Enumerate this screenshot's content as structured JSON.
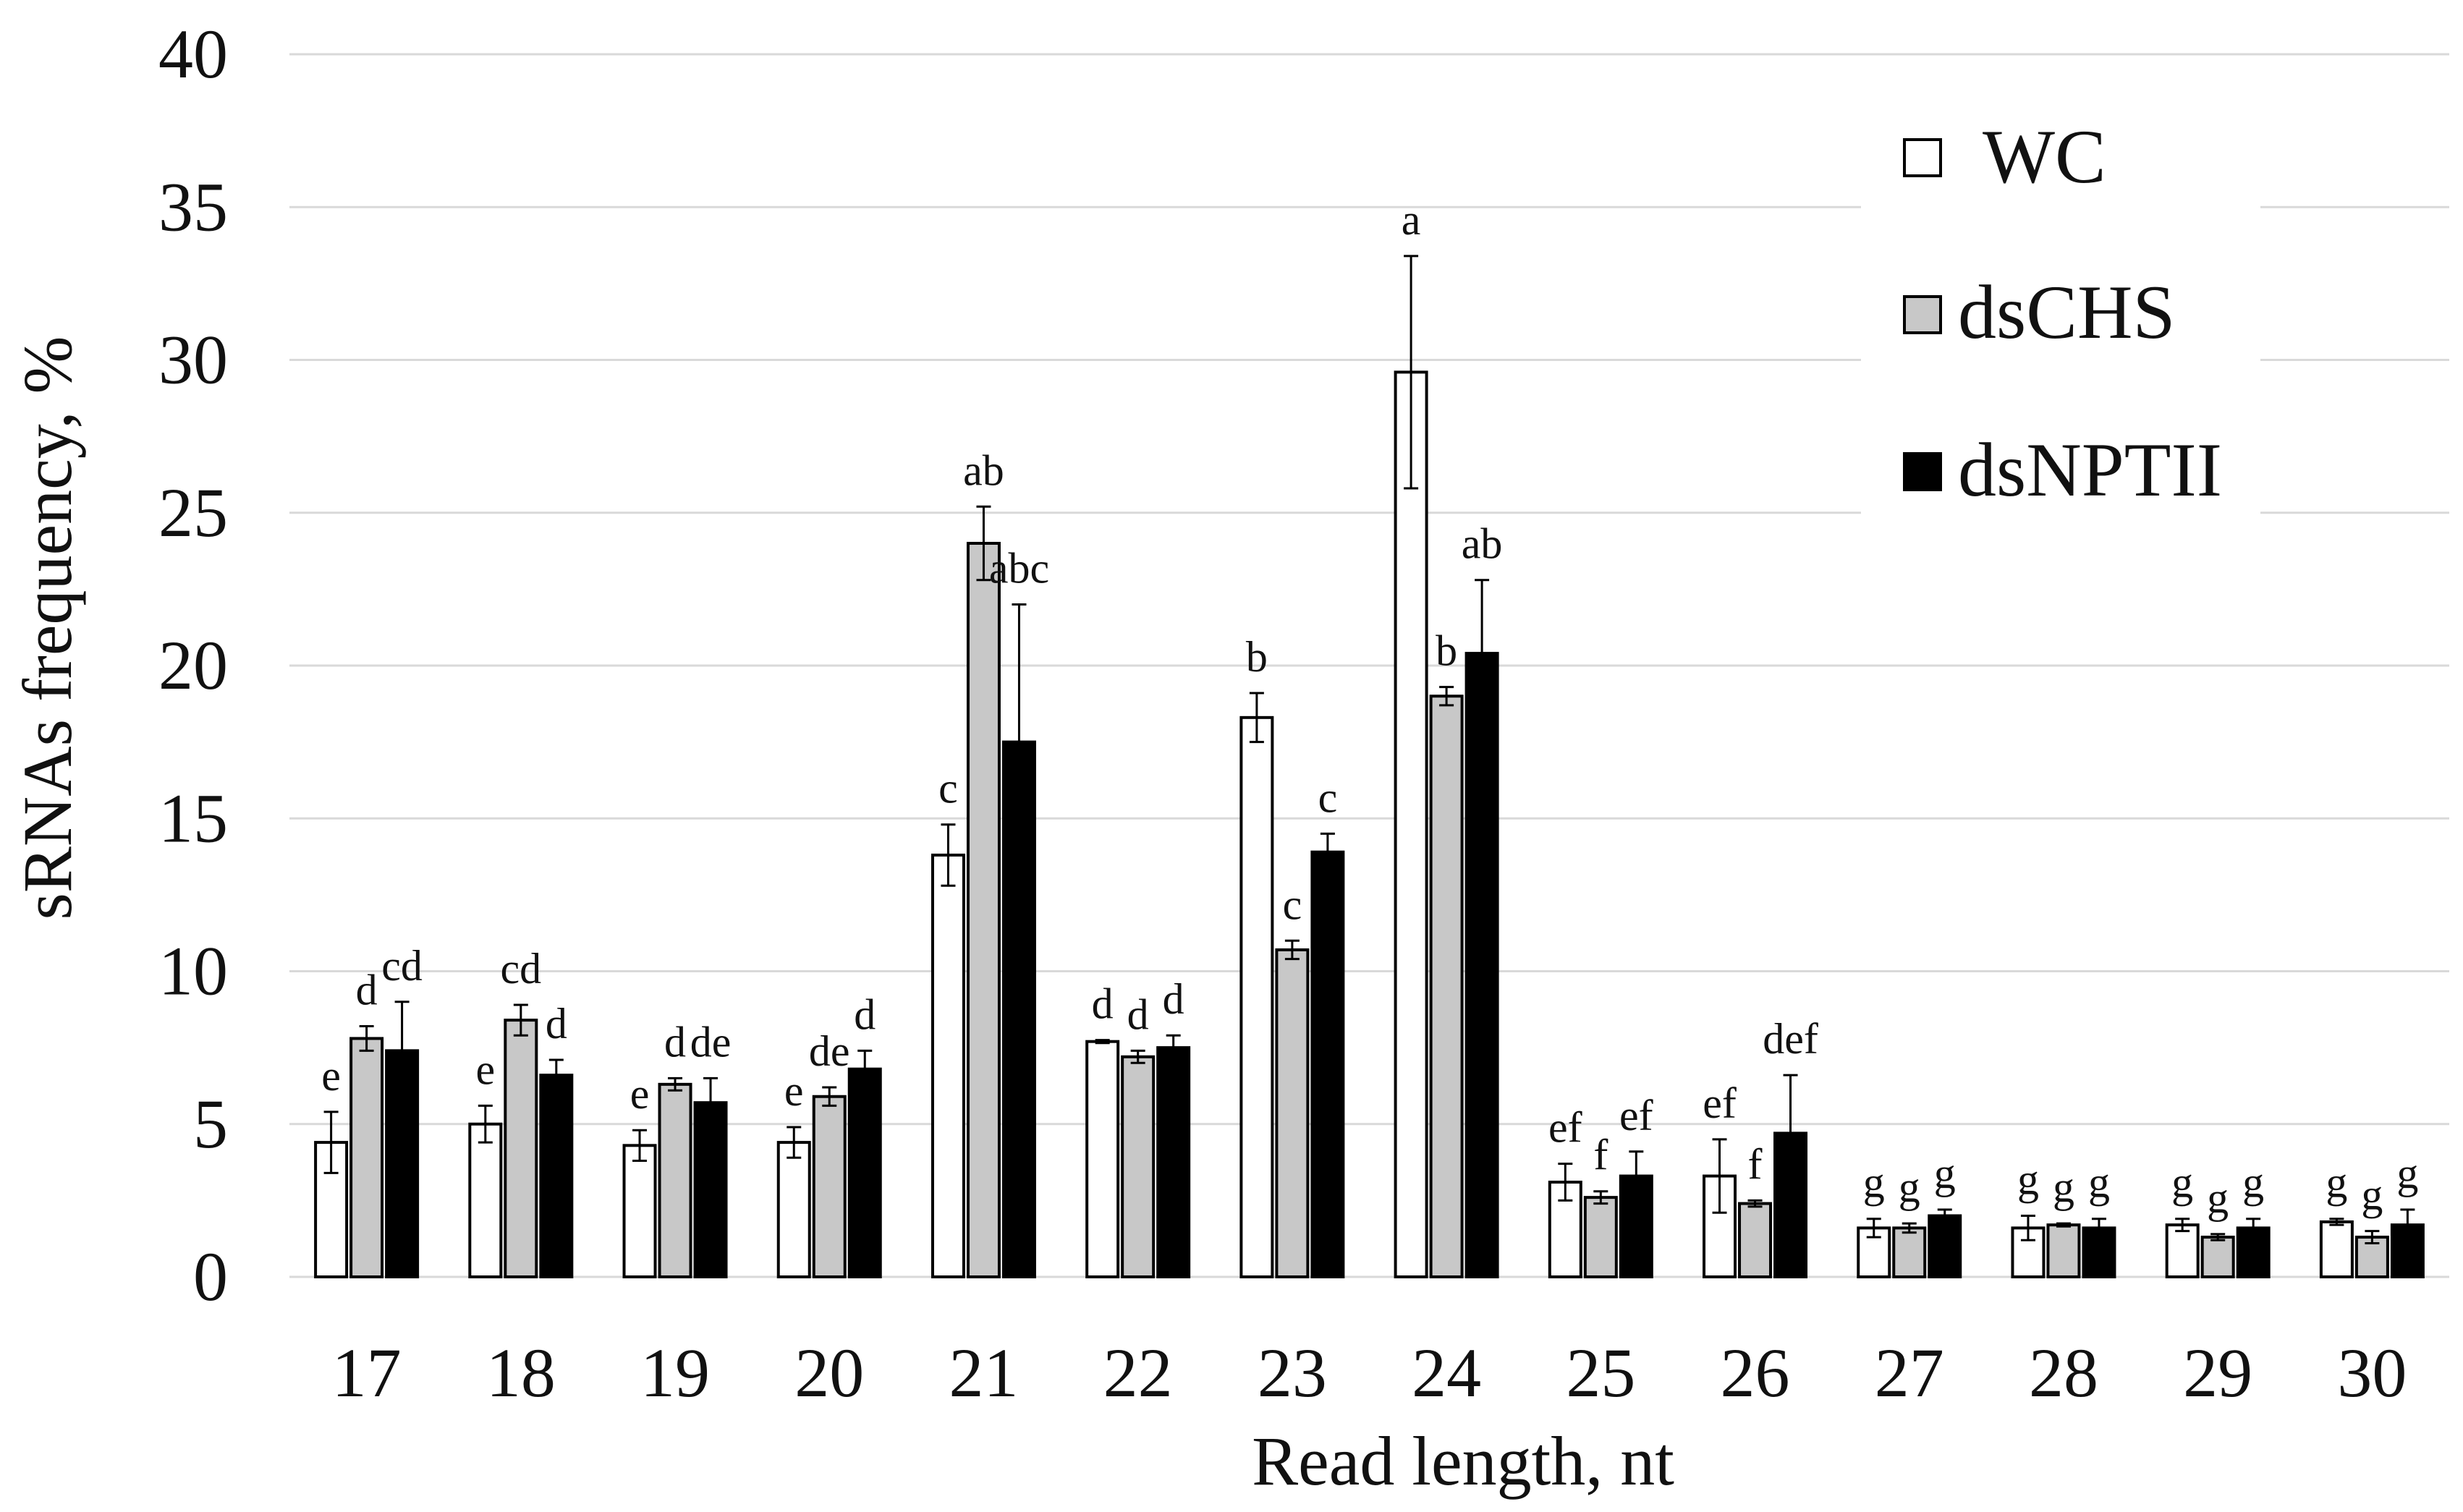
{
  "chart_data": {
    "type": "bar",
    "title": "",
    "xlabel": "Read length, nt",
    "ylabel": "sRNAs frequency, %",
    "ylim": [
      0,
      40
    ],
    "yticks": [
      0,
      5,
      10,
      15,
      20,
      25,
      30,
      35,
      40
    ],
    "grid": true,
    "legend_position": "top-right",
    "categories": [
      "17",
      "18",
      "19",
      "20",
      "21",
      "22",
      "23",
      "24",
      "25",
      "26",
      "27",
      "28",
      "29",
      "30"
    ],
    "series": [
      {
        "name": "WC",
        "color": "#ffffff",
        "values": [
          4.4,
          5.0,
          4.3,
          4.4,
          13.8,
          7.7,
          18.3,
          29.6,
          3.1,
          3.3,
          1.6,
          1.6,
          1.7,
          1.8
        ],
        "errors": [
          1.0,
          0.6,
          0.5,
          0.5,
          1.0,
          0.05,
          0.8,
          3.8,
          0.6,
          1.2,
          0.3,
          0.4,
          0.2,
          0.1
        ],
        "labels": [
          "e",
          "e",
          "e",
          "e",
          "c",
          "d",
          "b",
          "a",
          "ef",
          "ef",
          "g",
          "g",
          "g",
          "g"
        ]
      },
      {
        "name": "dsCHS",
        "color": "#c8c8c8",
        "values": [
          7.8,
          8.4,
          6.3,
          5.9,
          24.0,
          7.2,
          10.7,
          19.0,
          2.6,
          2.4,
          1.6,
          1.7,
          1.3,
          1.3
        ],
        "errors": [
          0.4,
          0.5,
          0.2,
          0.3,
          1.2,
          0.2,
          0.3,
          0.3,
          0.2,
          0.1,
          0.15,
          0.05,
          0.1,
          0.2
        ],
        "labels": [
          "d",
          "cd",
          "d",
          "de",
          "ab",
          "d",
          "c",
          "b",
          "f",
          "f",
          "g",
          "g",
          "g",
          "g"
        ]
      },
      {
        "name": "dsNPTII",
        "color": "#000000",
        "values": [
          7.4,
          6.6,
          5.7,
          6.8,
          17.5,
          7.5,
          13.9,
          20.4,
          3.3,
          4.7,
          2.0,
          1.6,
          1.6,
          1.7
        ],
        "errors": [
          1.6,
          0.5,
          0.8,
          0.6,
          4.5,
          0.4,
          0.6,
          2.4,
          0.8,
          1.9,
          0.2,
          0.3,
          0.3,
          0.5
        ],
        "labels": [
          "cd",
          "d",
          "de",
          "d",
          "abc",
          "d",
          "c",
          "ab",
          "ef",
          "def",
          "g",
          "g",
          "g",
          "g"
        ]
      }
    ]
  }
}
